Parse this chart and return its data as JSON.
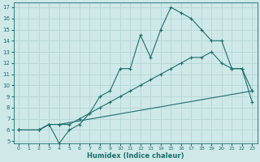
{
  "xlabel": "Humidex (Indice chaleur)",
  "bg_color": "#cfe8e8",
  "grid_color": "#b8d8d8",
  "line_color": "#1a6e6e",
  "xlim": [
    -0.5,
    23.5
  ],
  "ylim": [
    4.8,
    17.4
  ],
  "xticks": [
    0,
    1,
    2,
    3,
    4,
    5,
    6,
    7,
    8,
    9,
    10,
    11,
    12,
    13,
    14,
    15,
    16,
    17,
    18,
    19,
    20,
    21,
    22,
    23
  ],
  "yticks": [
    5,
    6,
    7,
    8,
    9,
    10,
    11,
    12,
    13,
    14,
    15,
    16,
    17
  ],
  "line1_x": [
    0,
    2,
    3,
    4,
    5,
    6,
    7,
    8,
    9,
    10,
    11,
    12,
    13,
    14,
    15,
    16,
    17,
    18,
    19,
    20,
    21,
    22,
    23
  ],
  "line1_y": [
    6,
    6,
    6.5,
    6.5,
    6.5,
    7.0,
    7.5,
    8.0,
    8.5,
    9.0,
    9.5,
    10.0,
    10.5,
    11.0,
    11.5,
    12.0,
    12.5,
    12.5,
    13.0,
    12.0,
    11.5,
    11.5,
    9.5
  ],
  "line2_x": [
    0,
    2,
    3,
    4,
    5,
    6,
    7,
    8,
    9,
    10,
    11,
    12,
    13,
    14,
    15,
    16,
    17,
    18,
    19,
    20,
    21,
    22,
    23
  ],
  "line2_y": [
    6,
    6,
    6.5,
    4.8,
    6.0,
    6.5,
    7.5,
    9.0,
    9.5,
    11.5,
    11.5,
    14.5,
    12.5,
    15.0,
    17.0,
    16.5,
    16.0,
    15.0,
    14.0,
    14.0,
    11.5,
    11.5,
    8.5
  ],
  "line3_x": [
    0,
    2,
    3,
    4,
    23
  ],
  "line3_y": [
    6,
    6,
    6.5,
    6.5,
    9.5
  ]
}
